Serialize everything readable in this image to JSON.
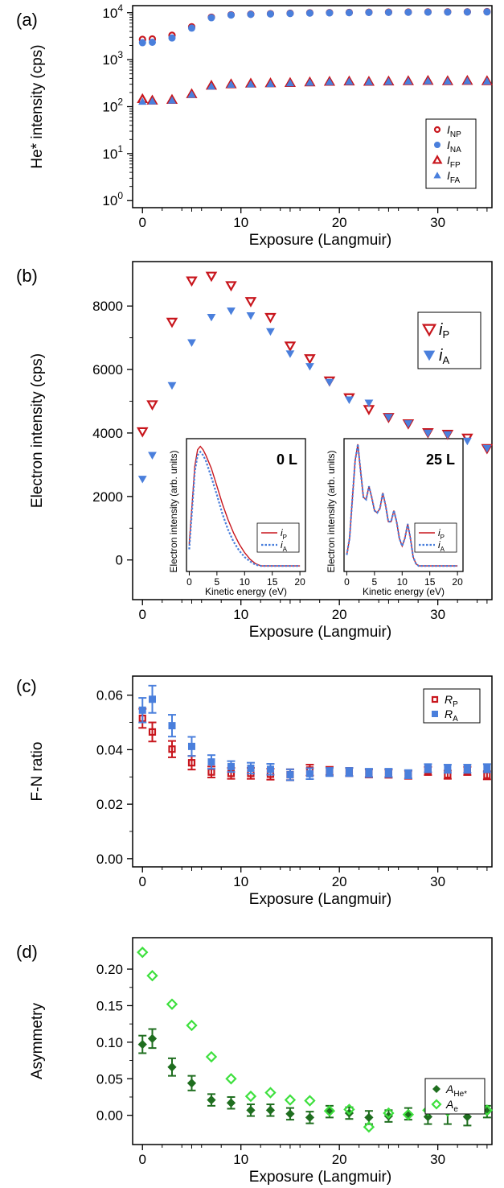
{
  "chart_data": [
    {
      "panel": "(a)",
      "type": "scatter",
      "xlabel": "Exposure (Langmuir)",
      "ylabel": "He* intensity (cps)",
      "xlim": [
        -1,
        35.5
      ],
      "ylim_log10": [
        -0.15,
        4.15
      ],
      "yscale": "log",
      "xticks": [
        0,
        10,
        20,
        30
      ],
      "yticks": [
        {
          "mant": "10",
          "exp": "4",
          "v": 4
        },
        {
          "mant": "10",
          "exp": "3",
          "v": 3
        },
        {
          "mant": "10",
          "exp": "2",
          "v": 2
        },
        {
          "mant": "10",
          "exp": "1",
          "v": 1
        },
        {
          "mant": "10",
          "exp": "0",
          "v": 0
        }
      ],
      "legend_position": "lower-right",
      "x": [
        0,
        1,
        3,
        5,
        7,
        9,
        11,
        13,
        15,
        17,
        19,
        21,
        23,
        25,
        27,
        29,
        31,
        33,
        35
      ],
      "series": [
        {
          "name": "I",
          "sub": "NP",
          "marker": "circle-open",
          "color": "#c8161d",
          "values": [
            2700,
            2750,
            3300,
            5000,
            8000,
            9000,
            9300,
            9500,
            9700,
            9900,
            10000,
            10100,
            10200,
            10250,
            10300,
            10350,
            10400,
            10400,
            10500
          ]
        },
        {
          "name": "I",
          "sub": "NA",
          "marker": "circle-filled",
          "color": "#4a7fdc",
          "values": [
            2300,
            2350,
            2900,
            4700,
            7800,
            8900,
            9200,
            9400,
            9600,
            9800,
            9900,
            10000,
            10100,
            10150,
            10200,
            10250,
            10300,
            10350,
            10400
          ]
        },
        {
          "name": "I",
          "sub": "FP",
          "marker": "triangle-open",
          "color": "#c8161d",
          "values": [
            145,
            135,
            140,
            185,
            280,
            300,
            310,
            315,
            320,
            330,
            340,
            345,
            340,
            345,
            350,
            355,
            350,
            355,
            350
          ]
        },
        {
          "name": "I",
          "sub": "FA",
          "marker": "triangle-filled",
          "color": "#4a7fdc",
          "values": [
            128,
            130,
            135,
            180,
            270,
            295,
            300,
            305,
            315,
            325,
            335,
            340,
            335,
            340,
            345,
            350,
            345,
            350,
            345
          ]
        }
      ]
    },
    {
      "panel": "(b)",
      "type": "scatter",
      "xlabel": "Exposure (Langmuir)",
      "ylabel": "Electron intensity (cps)",
      "xlim": [
        -1,
        35.5
      ],
      "ylim": [
        -1250,
        9400
      ],
      "xticks": [
        0,
        10,
        20,
        30
      ],
      "yticks": [
        0,
        2000,
        4000,
        6000,
        8000
      ],
      "legend_position": "upper-right",
      "x": [
        0,
        1,
        3,
        5,
        7,
        9,
        11,
        13,
        15,
        17,
        19,
        21,
        23,
        25,
        27,
        29,
        31,
        33,
        35
      ],
      "series": [
        {
          "name": "i",
          "sub": "P",
          "marker": "triangle-down-open",
          "color": "#c8161d",
          "values": [
            4050,
            4900,
            7500,
            8800,
            8950,
            8650,
            8150,
            7650,
            6750,
            6350,
            5650,
            5120,
            4750,
            4500,
            4300,
            4020,
            3970,
            3850,
            3520
          ]
        },
        {
          "name": "i",
          "sub": "A",
          "marker": "triangle-down-filled",
          "color": "#4a7fdc",
          "values": [
            2550,
            3300,
            5500,
            6850,
            7650,
            7850,
            7700,
            7200,
            6500,
            6100,
            5600,
            5050,
            4950,
            4500,
            4300,
            4000,
            3950,
            3750,
            3520
          ]
        }
      ],
      "insets": [
        {
          "title": "0 L",
          "type": "line",
          "xlabel": "Kinetic energy (eV)",
          "ylabel": "Electron intensity (arb. units)",
          "xticks": [
            0,
            5,
            10,
            15,
            20
          ],
          "xlim": [
            -0.5,
            21
          ],
          "ylim": [
            -0.05,
            1.15
          ],
          "series": [
            {
              "name": "i",
              "sub": "P",
              "style": "solid",
              "color": "#c8161d",
              "x": [
                0,
                0.5,
                1,
                1.5,
                2,
                2.5,
                3,
                4,
                5,
                6,
                7,
                8,
                9,
                10,
                11,
                12,
                13,
                14,
                15,
                16,
                17,
                18,
                19,
                20
              ],
              "y": [
                0.2,
                0.55,
                0.9,
                1.05,
                1.08,
                1.05,
                1.0,
                0.88,
                0.72,
                0.56,
                0.42,
                0.3,
                0.2,
                0.12,
                0.06,
                0.02,
                0,
                0,
                0,
                0,
                0,
                0,
                0,
                0
              ]
            },
            {
              "name": "i",
              "sub": "A",
              "style": "dotted",
              "color": "#4a7fdc",
              "x": [
                0,
                0.5,
                1,
                1.5,
                2,
                2.5,
                3,
                4,
                5,
                6,
                7,
                8,
                9,
                10,
                11,
                12,
                13,
                14,
                15,
                16,
                17,
                18,
                19,
                20
              ],
              "y": [
                0.15,
                0.5,
                0.85,
                1.0,
                1.03,
                1.0,
                0.95,
                0.8,
                0.64,
                0.47,
                0.33,
                0.22,
                0.14,
                0.08,
                0.04,
                0.01,
                0,
                0,
                0,
                0,
                0,
                0,
                0,
                0
              ]
            }
          ]
        },
        {
          "title": "25 L",
          "type": "line",
          "xlabel": "Kinetic energy (eV)",
          "ylabel": "Electron intensity (arb. units)",
          "xticks": [
            0,
            5,
            10,
            15,
            20
          ],
          "xlim": [
            -0.5,
            21
          ],
          "ylim": [
            -0.05,
            1.15
          ],
          "series": [
            {
              "name": "i",
              "sub": "P",
              "style": "solid",
              "color": "#c8161d",
              "x": [
                0,
                0.5,
                1,
                1.5,
                2,
                2.5,
                3,
                3.5,
                4,
                4.5,
                5,
                5.5,
                6,
                6.5,
                7,
                7.5,
                8,
                8.5,
                9,
                9.5,
                10,
                10.5,
                11,
                11.5,
                12,
                12.5,
                13,
                14,
                15,
                16,
                17,
                18,
                19,
                20
              ],
              "y": [
                0.1,
                0.25,
                0.6,
                0.95,
                1.1,
                0.85,
                0.62,
                0.6,
                0.72,
                0.62,
                0.5,
                0.48,
                0.52,
                0.66,
                0.55,
                0.4,
                0.4,
                0.5,
                0.4,
                0.25,
                0.18,
                0.25,
                0.38,
                0.25,
                0.08,
                0.02,
                0,
                0,
                0,
                0,
                0,
                0,
                0,
                0
              ]
            },
            {
              "name": "i",
              "sub": "A",
              "style": "dotted",
              "color": "#4a7fdc",
              "x": [
                0,
                0.5,
                1,
                1.5,
                2,
                2.5,
                3,
                3.5,
                4,
                4.5,
                5,
                5.5,
                6,
                6.5,
                7,
                7.5,
                8,
                8.5,
                9,
                9.5,
                10,
                10.5,
                11,
                11.5,
                12,
                12.5,
                13,
                14,
                15,
                16,
                17,
                18,
                19,
                20
              ],
              "y": [
                0.1,
                0.25,
                0.6,
                0.95,
                1.1,
                0.85,
                0.62,
                0.6,
                0.72,
                0.62,
                0.5,
                0.48,
                0.52,
                0.66,
                0.55,
                0.4,
                0.4,
                0.5,
                0.4,
                0.25,
                0.18,
                0.25,
                0.38,
                0.25,
                0.08,
                0.02,
                0,
                0,
                0,
                0,
                0,
                0,
                0,
                0
              ]
            }
          ]
        }
      ]
    },
    {
      "panel": "(c)",
      "type": "scatter",
      "xlabel": "Exposure (Langmuir)",
      "ylabel": "F-N ratio",
      "xlim": [
        -1,
        35.5
      ],
      "ylim": [
        -0.003,
        0.067
      ],
      "xticks": [
        0,
        10,
        20,
        30
      ],
      "yticks": [
        "0.00",
        "0.02",
        "0.04",
        "0.06"
      ],
      "legend_position": "upper-right",
      "x": [
        0,
        1,
        3,
        5,
        7,
        9,
        11,
        13,
        15,
        17,
        19,
        21,
        23,
        25,
        27,
        29,
        31,
        33,
        35
      ],
      "series": [
        {
          "name": "R",
          "sub": "P",
          "marker": "square-open",
          "color": "#c8161d",
          "values": [
            0.0515,
            0.0465,
            0.0402,
            0.0352,
            0.0318,
            0.0313,
            0.0313,
            0.031,
            0.0308,
            0.0325,
            0.0322,
            0.0318,
            0.0313,
            0.0312,
            0.0308,
            0.0322,
            0.0308,
            0.0322,
            0.0306
          ],
          "errors": [
            0.0035,
            0.0035,
            0.003,
            0.0025,
            0.002,
            0.002,
            0.002,
            0.002,
            0.002,
            0.002,
            0.0015,
            0.0015,
            0.0015,
            0.0015,
            0.0015,
            0.0015,
            0.0015,
            0.0015,
            0.0015
          ]
        },
        {
          "name": "R",
          "sub": "A",
          "marker": "square-filled",
          "color": "#4a7fdc",
          "values": [
            0.0545,
            0.0585,
            0.0488,
            0.0412,
            0.0355,
            0.0338,
            0.0332,
            0.0328,
            0.0308,
            0.0312,
            0.0318,
            0.0318,
            0.0315,
            0.0315,
            0.031,
            0.0332,
            0.033,
            0.033,
            0.0332
          ],
          "errors": [
            0.0045,
            0.005,
            0.004,
            0.0035,
            0.0025,
            0.002,
            0.002,
            0.002,
            0.002,
            0.002,
            0.0015,
            0.0015,
            0.0015,
            0.0015,
            0.0015,
            0.0015,
            0.0015,
            0.0015,
            0.0015
          ]
        }
      ]
    },
    {
      "panel": "(d)",
      "type": "scatter",
      "xlabel": "Exposure (Langmuir)",
      "ylabel": "Asymmetry",
      "xlim": [
        -1,
        35.5
      ],
      "ylim": [
        -0.04,
        0.243
      ],
      "xticks": [
        0,
        10,
        20,
        30
      ],
      "yticks": [
        "0.00",
        "0.05",
        "0.10",
        "0.15",
        "0.20"
      ],
      "legend_position": "lower-right",
      "x": [
        0,
        1,
        3,
        5,
        7,
        9,
        11,
        13,
        15,
        17,
        19,
        21,
        23,
        25,
        27,
        29,
        31,
        33,
        35
      ],
      "series": [
        {
          "name": "A",
          "sub": "He*",
          "marker": "diamond-filled",
          "color": "#1f6e1f",
          "values": [
            0.097,
            0.105,
            0.066,
            0.044,
            0.021,
            0.017,
            0.007,
            0.007,
            0.002,
            -0.003,
            0.005,
            0.003,
            -0.003,
            -0.001,
            0.002,
            -0.002,
            0.005,
            -0.002,
            0.005
          ],
          "errors": [
            0.012,
            0.013,
            0.012,
            0.01,
            0.008,
            0.008,
            0.008,
            0.008,
            0.008,
            0.008,
            0.008,
            0.008,
            0.009,
            0.008,
            0.008,
            0.01,
            0.017,
            0.012,
            0.008
          ]
        },
        {
          "name": "A",
          "sub": "e",
          "marker": "diamond-open",
          "color": "#3ee03e",
          "values": [
            0.223,
            0.191,
            0.152,
            0.123,
            0.08,
            0.05,
            0.026,
            0.031,
            0.021,
            0.02,
            0.006,
            0.008,
            -0.016,
            0.003,
            0.001,
            0.007,
            0.006,
            0.01,
            0.007
          ],
          "errors": []
        }
      ]
    }
  ]
}
